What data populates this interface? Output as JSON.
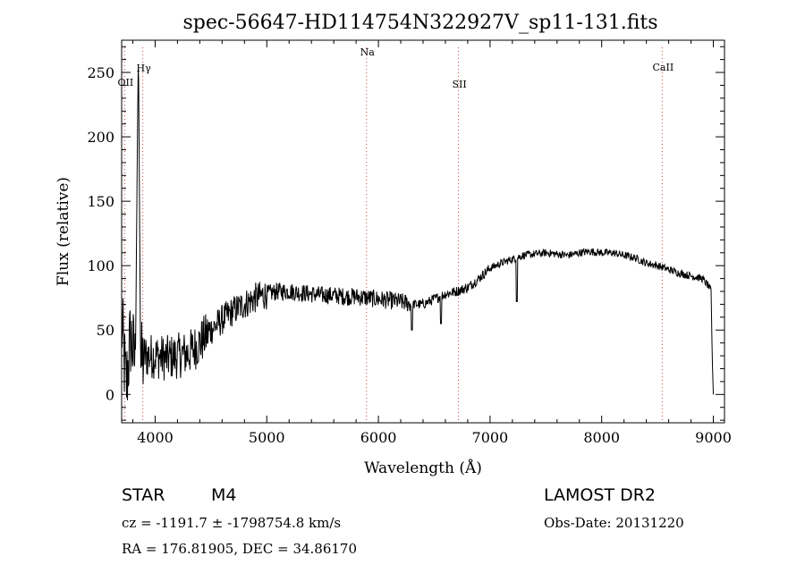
{
  "chart_data": {
    "type": "line",
    "title": "spec-56647-HD114754N322927V_sp11-131.fits",
    "xlabel": "Wavelength (Å)",
    "ylabel": "Flux (relative)",
    "xlim": [
      3700,
      9100
    ],
    "ylim": [
      -22,
      275
    ],
    "x_ticks": [
      4000,
      5000,
      6000,
      7000,
      8000,
      9000
    ],
    "y_ticks": [
      0,
      50,
      100,
      150,
      200,
      250
    ],
    "grid": false,
    "line_color": "#000000",
    "marker_color": "#d04040",
    "spectrum_anchors": [
      [
        3700,
        55
      ],
      [
        3740,
        5
      ],
      [
        3780,
        45
      ],
      [
        3820,
        25
      ],
      [
        3850,
        270
      ],
      [
        3870,
        20
      ],
      [
        3900,
        30
      ],
      [
        4000,
        30
      ],
      [
        4100,
        28
      ],
      [
        4200,
        30
      ],
      [
        4300,
        32
      ],
      [
        4400,
        40
      ],
      [
        4500,
        50
      ],
      [
        4600,
        58
      ],
      [
        4700,
        65
      ],
      [
        4800,
        70
      ],
      [
        4900,
        75
      ],
      [
        5000,
        78
      ],
      [
        5100,
        80
      ],
      [
        5200,
        80
      ],
      [
        5300,
        79
      ],
      [
        5400,
        78
      ],
      [
        5500,
        77
      ],
      [
        5600,
        77
      ],
      [
        5700,
        76
      ],
      [
        5800,
        76
      ],
      [
        5900,
        75
      ],
      [
        6000,
        74
      ],
      [
        6100,
        73
      ],
      [
        6200,
        72
      ],
      [
        6300,
        70
      ],
      [
        6400,
        70
      ],
      [
        6500,
        74
      ],
      [
        6600,
        78
      ],
      [
        6700,
        80
      ],
      [
        6800,
        83
      ],
      [
        6900,
        90
      ],
      [
        7000,
        98
      ],
      [
        7100,
        102
      ],
      [
        7200,
        105
      ],
      [
        7300,
        108
      ],
      [
        7400,
        109
      ],
      [
        7500,
        110
      ],
      [
        7600,
        109
      ],
      [
        7700,
        108
      ],
      [
        7800,
        110
      ],
      [
        7900,
        111
      ],
      [
        8000,
        110
      ],
      [
        8100,
        110
      ],
      [
        8200,
        108
      ],
      [
        8300,
        106
      ],
      [
        8400,
        102
      ],
      [
        8500,
        100
      ],
      [
        8600,
        97
      ],
      [
        8700,
        94
      ],
      [
        8800,
        92
      ],
      [
        8900,
        90
      ],
      [
        8950,
        85
      ],
      [
        8980,
        80
      ],
      [
        8990,
        30
      ],
      [
        9000,
        0
      ]
    ],
    "spectrum_dips": [
      [
        6300,
        50
      ],
      [
        6560,
        55
      ],
      [
        7240,
        72
      ]
    ],
    "lines": [
      {
        "name": "OII",
        "wavelength": 3727
      },
      {
        "name": "Hγ",
        "wavelength": 3889
      },
      {
        "name": "Na",
        "wavelength": 5893
      },
      {
        "name": "SII",
        "wavelength": 6717
      },
      {
        "name": "CaII",
        "wavelength": 8542
      }
    ]
  },
  "info": {
    "class": "STAR",
    "subclass": "M4",
    "survey": "LAMOST DR2",
    "cz": "cz = -1191.7 ± -1798754.8 km/s",
    "obs_date": "Obs-Date: 20131220",
    "coords": "RA = 176.81905, DEC =  34.86170"
  }
}
